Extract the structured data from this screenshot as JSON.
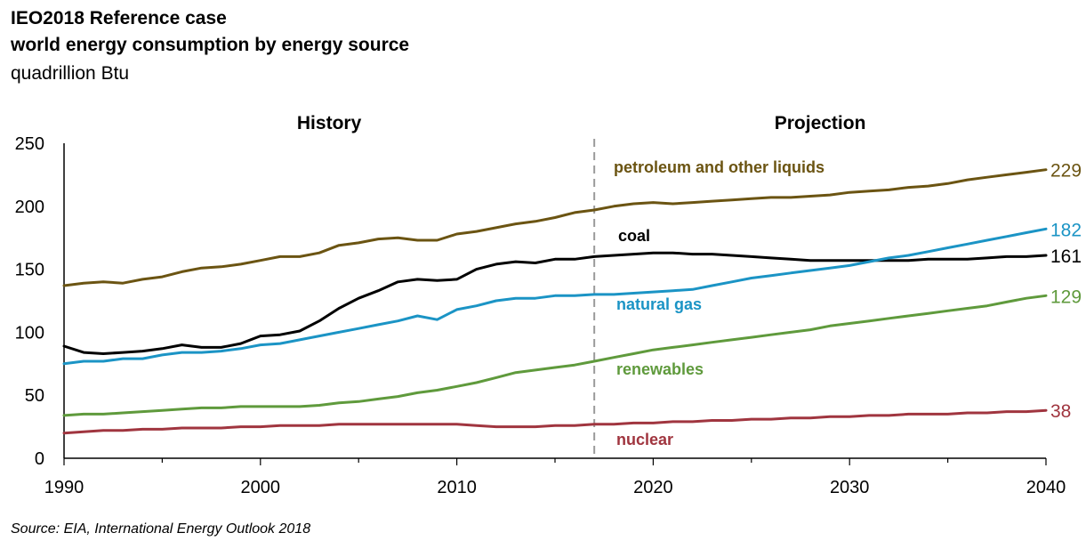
{
  "title_line1": "IEO2018 Reference case",
  "title_line2": "world energy consumption by energy source",
  "subtitle": "quadrillion Btu",
  "source": "Source:  EIA, International Energy Outlook 2018",
  "chart_data": {
    "type": "line",
    "title": "IEO2018 Reference case world energy consumption by energy source",
    "ylabel": "quadrillion Btu",
    "xlabel": "",
    "xlim": [
      1990,
      2040
    ],
    "ylim": [
      0,
      250
    ],
    "x_ticks": [
      1990,
      2000,
      2010,
      2020,
      2030,
      2040
    ],
    "y_ticks": [
      0,
      50,
      100,
      150,
      200,
      250
    ],
    "grid": false,
    "divider_year": 2017,
    "region_labels": {
      "history": "History",
      "projection": "Projection"
    },
    "x": [
      1990,
      1991,
      1992,
      1993,
      1994,
      1995,
      1996,
      1997,
      1998,
      1999,
      2000,
      2001,
      2002,
      2003,
      2004,
      2005,
      2006,
      2007,
      2008,
      2009,
      2010,
      2011,
      2012,
      2013,
      2014,
      2015,
      2016,
      2017,
      2018,
      2019,
      2020,
      2021,
      2022,
      2023,
      2024,
      2025,
      2026,
      2027,
      2028,
      2029,
      2030,
      2031,
      2032,
      2033,
      2034,
      2035,
      2036,
      2037,
      2038,
      2039,
      2040
    ],
    "series": [
      {
        "name": "petroleum and other liquids",
        "color": "#6b5412",
        "end_label": "229",
        "values": [
          137,
          139,
          140,
          139,
          142,
          144,
          148,
          151,
          152,
          154,
          157,
          160,
          160,
          163,
          169,
          171,
          174,
          175,
          173,
          173,
          178,
          180,
          183,
          186,
          188,
          191,
          195,
          197,
          200,
          202,
          203,
          202,
          203,
          204,
          205,
          206,
          207,
          207,
          208,
          209,
          211,
          212,
          213,
          215,
          216,
          218,
          221,
          223,
          225,
          227,
          229
        ]
      },
      {
        "name": "coal",
        "color": "#000000",
        "end_label": "161",
        "values": [
          89,
          84,
          83,
          84,
          85,
          87,
          90,
          88,
          88,
          91,
          97,
          98,
          101,
          109,
          119,
          127,
          133,
          140,
          142,
          141,
          142,
          150,
          154,
          156,
          155,
          158,
          158,
          160,
          161,
          162,
          163,
          163,
          162,
          162,
          161,
          160,
          159,
          158,
          157,
          157,
          157,
          157,
          157,
          157,
          158,
          158,
          158,
          159,
          160,
          160,
          161
        ]
      },
      {
        "name": "natural gas",
        "color": "#1b94c5",
        "end_label": "182",
        "values": [
          75,
          77,
          77,
          79,
          79,
          82,
          84,
          84,
          85,
          87,
          90,
          91,
          94,
          97,
          100,
          103,
          106,
          109,
          113,
          110,
          118,
          121,
          125,
          127,
          127,
          129,
          129,
          130,
          130,
          131,
          132,
          133,
          134,
          137,
          140,
          143,
          145,
          147,
          149,
          151,
          153,
          156,
          159,
          161,
          164,
          167,
          170,
          173,
          176,
          179,
          182
        ]
      },
      {
        "name": "renewables",
        "color": "#5f9a3c",
        "end_label": "129",
        "values": [
          34,
          35,
          35,
          36,
          37,
          38,
          39,
          40,
          40,
          41,
          41,
          41,
          41,
          42,
          44,
          45,
          47,
          49,
          52,
          54,
          57,
          60,
          64,
          68,
          70,
          72,
          74,
          77,
          80,
          83,
          86,
          88,
          90,
          92,
          94,
          96,
          98,
          100,
          102,
          105,
          107,
          109,
          111,
          113,
          115,
          117,
          119,
          121,
          124,
          127,
          129
        ]
      },
      {
        "name": "nuclear",
        "color": "#a0353f",
        "end_label": "38",
        "values": [
          20,
          21,
          22,
          22,
          23,
          23,
          24,
          24,
          24,
          25,
          25,
          26,
          26,
          26,
          27,
          27,
          27,
          27,
          27,
          27,
          27,
          26,
          25,
          25,
          25,
          26,
          26,
          27,
          27,
          28,
          28,
          29,
          29,
          30,
          30,
          31,
          31,
          32,
          32,
          33,
          33,
          34,
          34,
          35,
          35,
          35,
          36,
          36,
          37,
          37,
          38
        ]
      }
    ],
    "series_labels": [
      {
        "series": "petroleum and other liquids",
        "text": "petroleum and other liquids"
      },
      {
        "series": "coal",
        "text": "coal"
      },
      {
        "series": "natural gas",
        "text": "natural gas"
      },
      {
        "series": "renewables",
        "text": "renewables"
      },
      {
        "series": "nuclear",
        "text": "nuclear"
      }
    ]
  }
}
